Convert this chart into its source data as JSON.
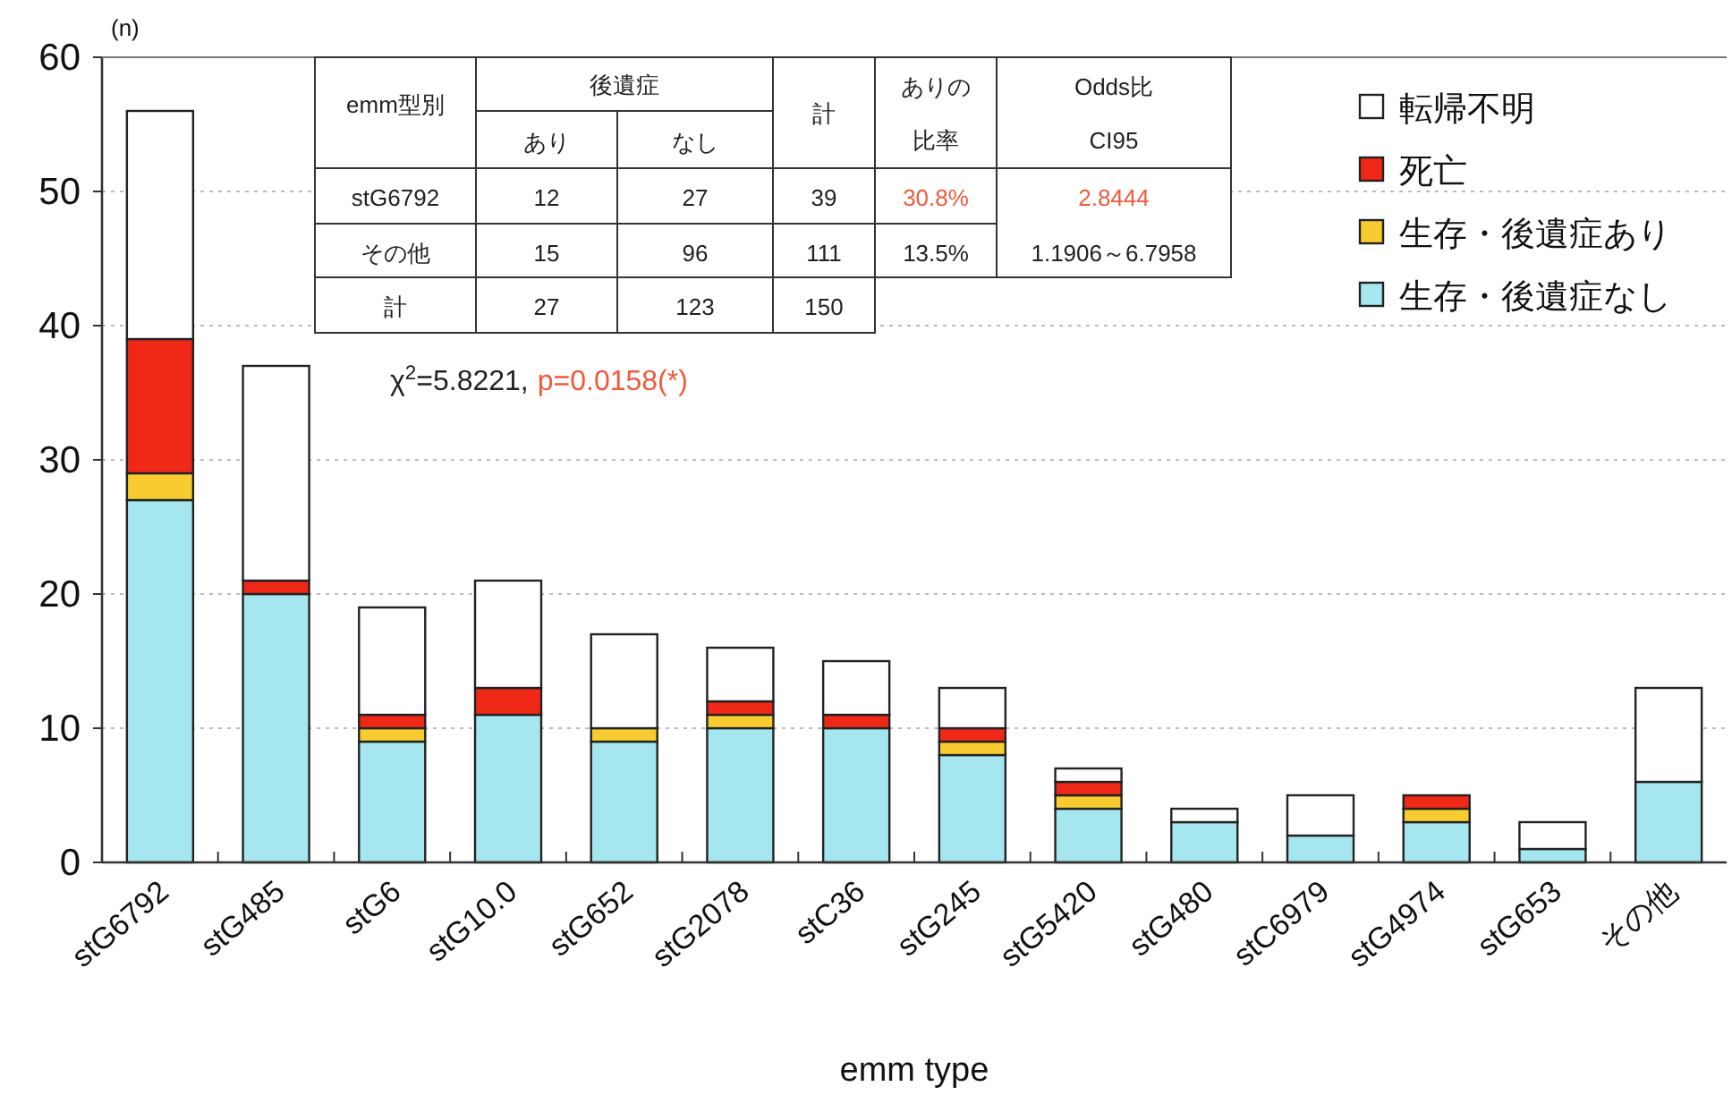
{
  "chart_data": {
    "type": "bar",
    "stacked": true,
    "ylabel": "(n)",
    "xlabel": "emm type",
    "categories": [
      "stG6792",
      "stG485",
      "stG6",
      "stG10.0",
      "stG652",
      "stG2078",
      "stC36",
      "stG245",
      "stG5420",
      "stG480",
      "stC6979",
      "stG4974",
      "stG653",
      "その他"
    ],
    "series": [
      {
        "name": "生存・後遺症なし",
        "color": "#a6e6ee",
        "values": [
          27,
          20,
          9,
          11,
          9,
          10,
          10,
          8,
          4,
          3,
          2,
          3,
          1,
          6
        ]
      },
      {
        "name": "生存・後遺症あり",
        "color": "#f8cc30",
        "values": [
          2,
          0,
          1,
          0,
          1,
          1,
          0,
          1,
          1,
          0,
          0,
          1,
          0,
          0
        ]
      },
      {
        "name": "死亡",
        "color": "#f02818",
        "values": [
          10,
          1,
          1,
          2,
          0,
          1,
          1,
          1,
          1,
          0,
          0,
          1,
          0,
          0
        ]
      },
      {
        "name": "転帰不明",
        "color": "#ffffff",
        "values": [
          17,
          16,
          8,
          8,
          7,
          4,
          4,
          3,
          1,
          1,
          3,
          0,
          2,
          7
        ]
      }
    ],
    "ylim": [
      0,
      60
    ],
    "yticks": [
      0,
      10,
      20,
      30,
      40,
      50,
      60
    ],
    "grid": "y",
    "legend": "top right",
    "annotations": [
      "emm型別",
      "後遺症",
      "あり",
      "なし",
      "計",
      "ありの",
      "比率",
      "Odds比",
      "CI95",
      "stG6792",
      "12",
      "27",
      "39",
      "30.8%",
      "2.8444",
      "その他",
      "15",
      "96",
      "111",
      "13.5%",
      "1.1906～6.7958",
      "計",
      "27",
      "123",
      "150",
      "χ$^{2}$=5.8221,",
      "p=0.0158(*)"
    ]
  }
}
